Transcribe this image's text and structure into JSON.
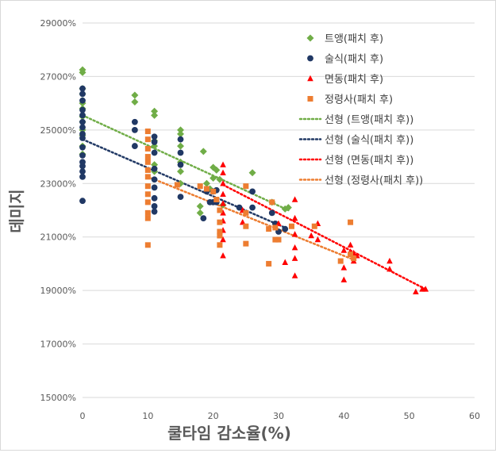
{
  "chart_data": {
    "type": "scatter",
    "xlabel": "쿨타임 감소율(%)",
    "ylabel": "데미지",
    "xlim": [
      0,
      60
    ],
    "ylim": [
      15000,
      29000
    ],
    "x_ticks": [
      "0",
      "10",
      "20",
      "30",
      "40",
      "50",
      "60"
    ],
    "y_ticks": [
      "15000%",
      "17000%",
      "19000%",
      "21000%",
      "23000%",
      "25000%",
      "27000%",
      "29000%"
    ],
    "grid": "horizontal",
    "legend_position": "top-right",
    "series": [
      {
        "name": "트앵(패치 후)",
        "color": "#70ad47",
        "marker": "diamond",
        "points": [
          [
            0,
            27250
          ],
          [
            0,
            27150
          ],
          [
            0,
            26550
          ],
          [
            0,
            26350
          ],
          [
            0,
            26000
          ],
          [
            0,
            25800
          ],
          [
            0,
            25500
          ],
          [
            0,
            25300
          ],
          [
            0,
            25000
          ],
          [
            0,
            24800
          ],
          [
            0,
            24400
          ],
          [
            0,
            24100
          ],
          [
            8,
            26300
          ],
          [
            8,
            26050
          ],
          [
            11,
            25700
          ],
          [
            11,
            25550
          ],
          [
            11,
            24600
          ],
          [
            11,
            24400
          ],
          [
            11,
            23700
          ],
          [
            11,
            23450
          ],
          [
            15,
            25000
          ],
          [
            15,
            24850
          ],
          [
            15,
            24400
          ],
          [
            15,
            23800
          ],
          [
            15,
            23450
          ],
          [
            15,
            23000
          ],
          [
            18,
            22150
          ],
          [
            18,
            21900
          ],
          [
            18.5,
            24200
          ],
          [
            19,
            23000
          ],
          [
            19.5,
            22800
          ],
          [
            20,
            23600
          ],
          [
            20,
            23200
          ],
          [
            20.5,
            23500
          ],
          [
            21,
            23150
          ],
          [
            21.5,
            22200
          ],
          [
            26,
            23400
          ],
          [
            29,
            22300
          ],
          [
            31,
            22050
          ],
          [
            31.5,
            22100
          ]
        ],
        "trend": [
          [
            0,
            25550
          ],
          [
            31.5,
            22000
          ]
        ]
      },
      {
        "name": "술식(패치 후)",
        "color": "#203864",
        "marker": "circle",
        "points": [
          [
            0,
            26550
          ],
          [
            0,
            26350
          ],
          [
            0,
            26100
          ],
          [
            0,
            25750
          ],
          [
            0,
            25550
          ],
          [
            0,
            25300
          ],
          [
            0,
            25100
          ],
          [
            0,
            24850
          ],
          [
            0,
            24700
          ],
          [
            0,
            24350
          ],
          [
            0,
            24050
          ],
          [
            0,
            23800
          ],
          [
            0,
            23650
          ],
          [
            0,
            23450
          ],
          [
            0,
            23250
          ],
          [
            0,
            22350
          ],
          [
            8,
            25300
          ],
          [
            8,
            25000
          ],
          [
            8,
            24400
          ],
          [
            11,
            24750
          ],
          [
            11,
            24550
          ],
          [
            11,
            24150
          ],
          [
            11,
            23550
          ],
          [
            11,
            23150
          ],
          [
            11,
            22850
          ],
          [
            11,
            22450
          ],
          [
            11,
            22150
          ],
          [
            11,
            21950
          ],
          [
            15,
            24650
          ],
          [
            15,
            24150
          ],
          [
            15,
            23700
          ],
          [
            15,
            22500
          ],
          [
            18.5,
            21700
          ],
          [
            19,
            22700
          ],
          [
            19.5,
            22300
          ],
          [
            20,
            22700
          ],
          [
            20,
            22300
          ],
          [
            20.5,
            22750
          ],
          [
            20.5,
            22300
          ],
          [
            24,
            22100
          ],
          [
            26,
            22700
          ],
          [
            26,
            22100
          ],
          [
            29,
            21900
          ],
          [
            29.5,
            21500
          ],
          [
            30,
            21200
          ],
          [
            31,
            21300
          ]
        ],
        "trend": [
          [
            0,
            24650
          ],
          [
            31,
            21350
          ]
        ]
      },
      {
        "name": "면동(패치 후)",
        "color": "#ff0000",
        "marker": "triangle",
        "points": [
          [
            21.5,
            23700
          ],
          [
            21.5,
            23400
          ],
          [
            21.5,
            23000
          ],
          [
            21.5,
            22600
          ],
          [
            21.5,
            22250
          ],
          [
            21.5,
            21900
          ],
          [
            21.5,
            21600
          ],
          [
            21.5,
            21250
          ],
          [
            21.5,
            20900
          ],
          [
            21.5,
            20300
          ],
          [
            24.5,
            22000
          ],
          [
            24.5,
            21550
          ],
          [
            30,
            21500
          ],
          [
            31,
            20050
          ],
          [
            32.5,
            22400
          ],
          [
            32.5,
            21700
          ],
          [
            32.5,
            21100
          ],
          [
            32.5,
            20600
          ],
          [
            32.5,
            20200
          ],
          [
            32.5,
            19550
          ],
          [
            35,
            21050
          ],
          [
            36,
            21500
          ],
          [
            36,
            20900
          ],
          [
            40,
            20500
          ],
          [
            40,
            19850
          ],
          [
            40,
            19400
          ],
          [
            41,
            20700
          ],
          [
            41,
            20450
          ],
          [
            41.5,
            20400
          ],
          [
            41.5,
            20100
          ],
          [
            42,
            20300
          ],
          [
            47,
            20100
          ],
          [
            47,
            19800
          ],
          [
            51,
            18950
          ],
          [
            52,
            19050
          ],
          [
            52.5,
            19050
          ]
        ],
        "trend": [
          [
            21.5,
            22950
          ],
          [
            52.5,
            19050
          ]
        ]
      },
      {
        "name": "정령사(패치 후)",
        "color": "#ed7d31",
        "marker": "square",
        "points": [
          [
            10,
            24950
          ],
          [
            10,
            24650
          ],
          [
            10,
            24300
          ],
          [
            10,
            24000
          ],
          [
            10,
            23800
          ],
          [
            10,
            23500
          ],
          [
            10,
            23250
          ],
          [
            10,
            22900
          ],
          [
            10,
            22600
          ],
          [
            10,
            22300
          ],
          [
            10,
            21900
          ],
          [
            10,
            21700
          ],
          [
            10,
            20700
          ],
          [
            14.5,
            22950
          ],
          [
            18,
            22900
          ],
          [
            19,
            22800
          ],
          [
            20,
            22700
          ],
          [
            20.5,
            22400
          ],
          [
            21,
            22000
          ],
          [
            21,
            21550
          ],
          [
            21,
            21200
          ],
          [
            21,
            21050
          ],
          [
            21,
            20700
          ],
          [
            25,
            22900
          ],
          [
            25,
            21900
          ],
          [
            25,
            21400
          ],
          [
            25,
            20750
          ],
          [
            28.5,
            21300
          ],
          [
            28.5,
            20000
          ],
          [
            29,
            22300
          ],
          [
            29.5,
            21350
          ],
          [
            29.5,
            20900
          ],
          [
            30,
            20900
          ],
          [
            32,
            21400
          ],
          [
            35.5,
            21400
          ],
          [
            39.5,
            20100
          ],
          [
            41,
            21550
          ],
          [
            41,
            20350
          ],
          [
            41.5,
            20200
          ]
        ],
        "trend": [
          [
            10,
            23250
          ],
          [
            41.5,
            20150
          ]
        ]
      }
    ],
    "legend": [
      "트앵(패치 후)",
      "술식(패치 후)",
      "면동(패치 후)",
      "정령사(패치 후)",
      "선형 (트앵(패치 후))",
      "선형 (술식(패치 후))",
      "선형 (면동(패치 후))",
      "선형 (정령사(패치 후))"
    ]
  }
}
